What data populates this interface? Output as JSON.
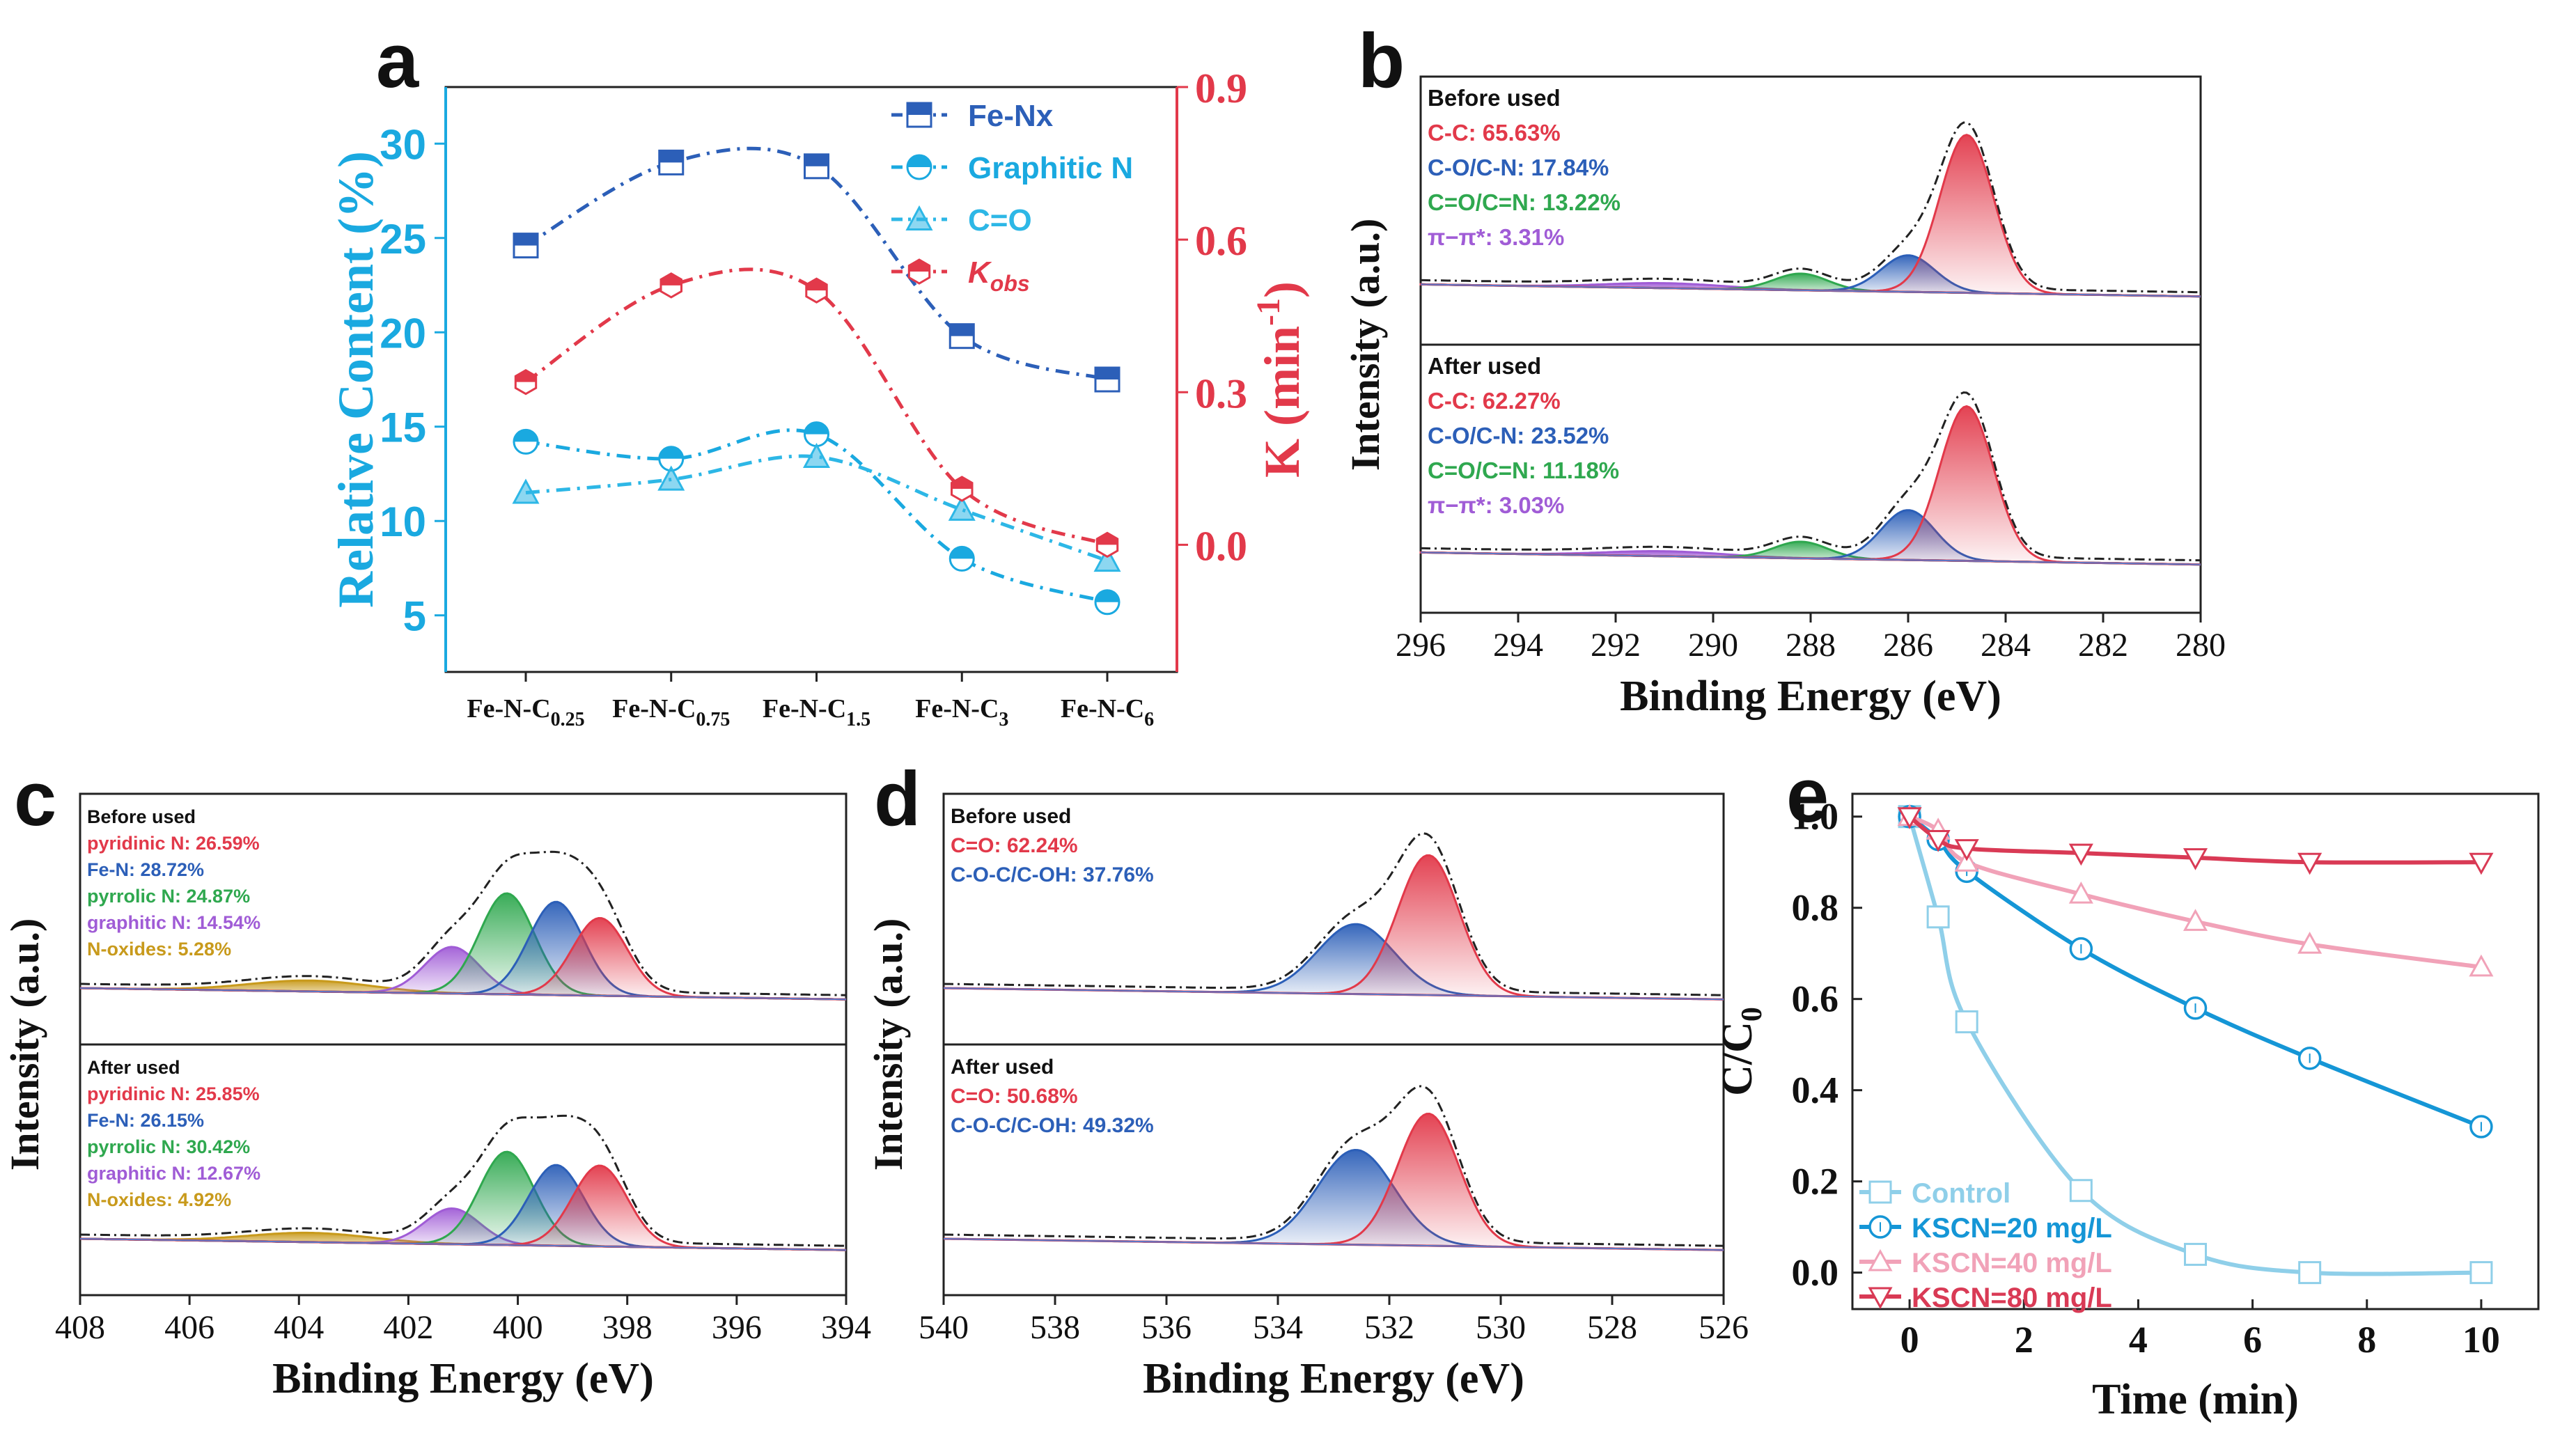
{
  "colors": {
    "blue": "#2c5fb8",
    "cyan": "#1aa9e0",
    "light_cyan": "#2db7e6",
    "red": "#e2394a",
    "green": "#2fa84f",
    "purple": "#a05cd6",
    "gold": "#c89a1c",
    "pink": "#e58aa6",
    "control": "#8fcfe9",
    "k20": "#1596d6",
    "k40": "#f1a2b8",
    "k80": "#d93a55"
  },
  "panel_labels": [
    "a",
    "b",
    "c",
    "d",
    "e"
  ],
  "chart_data": [
    {
      "panel": "a",
      "type": "line",
      "categories": [
        "Fe-N-C0.25",
        "Fe-N-C0.75",
        "Fe-N-C1.5",
        "Fe-N-C3",
        "Fe-N-C6"
      ],
      "category_labels": [
        {
          "base": "Fe-N-C",
          "sub": "0.25"
        },
        {
          "base": "Fe-N-C",
          "sub": "0.75"
        },
        {
          "base": "Fe-N-C",
          "sub": "1.5"
        },
        {
          "base": "Fe-N-C",
          "sub": "3"
        },
        {
          "base": "Fe-N-C",
          "sub": "6"
        }
      ],
      "ylabel_left": "Relative Content (%)",
      "ylabel_right": "K (min-1)",
      "ylabel_right_parts": {
        "base": "K (min",
        "sup": "-1",
        "end": ")"
      },
      "ylim_left": [
        2,
        33
      ],
      "ylim_right": [
        -0.25,
        0.9
      ],
      "yticks_left": [
        5,
        10,
        15,
        20,
        25,
        30
      ],
      "yticks_right": [
        0.0,
        0.3,
        0.6,
        0.9
      ],
      "yticklabels_right": [
        "0.0",
        "0.3",
        "0.6",
        "0.9"
      ],
      "series": [
        {
          "name": "Fe-Nx",
          "axis": "left",
          "marker": "square-half",
          "color": "#2c5fb8",
          "values": [
            24.6,
            29.0,
            28.8,
            19.8,
            17.5
          ]
        },
        {
          "name": "Graphitic N",
          "axis": "left",
          "marker": "circle-half",
          "color": "#1aa9e0",
          "values": [
            14.2,
            13.3,
            14.6,
            8.0,
            5.7
          ]
        },
        {
          "name": "C=O",
          "axis": "left",
          "marker": "triangle-half",
          "color": "#2db7e6",
          "values": [
            11.5,
            12.2,
            13.4,
            10.6,
            7.9
          ]
        },
        {
          "name": "Kobs",
          "label_parts": {
            "base": "K",
            "sub": "obs"
          },
          "axis": "right",
          "marker": "hexagon-half",
          "color": "#e2394a",
          "values": [
            0.32,
            0.51,
            0.5,
            0.11,
            0.0
          ]
        }
      ]
    },
    {
      "panel": "b",
      "type": "area",
      "xlabel": "Binding Energy (eV)",
      "ylabel": "Intensity (a.u.)",
      "xlim": [
        296,
        280
      ],
      "xticks": [
        296,
        294,
        292,
        290,
        288,
        286,
        284,
        282,
        280
      ],
      "subpanels": [
        {
          "title": "Before used",
          "components": [
            {
              "name": "C-C",
              "label": "C-C: 65.63%",
              "percent": 65.63,
              "center": 284.8,
              "height": 0.95,
              "color": "#e2394a"
            },
            {
              "name": "C-O/C-N",
              "label": "C-O/C-N: 17.84%",
              "percent": 17.84,
              "center": 286.0,
              "height": 0.22,
              "color": "#2c5fb8"
            },
            {
              "name": "C=O/C=N",
              "label": "C=O/C=N: 13.22%",
              "percent": 13.22,
              "center": 288.2,
              "height": 0.1,
              "color": "#2fa84f"
            },
            {
              "name": "π−π*",
              "label": "π−π*: 3.31%",
              "percent": 3.31,
              "center": 291.0,
              "height": 0.03,
              "color": "#a05cd6"
            }
          ]
        },
        {
          "title": "After used",
          "components": [
            {
              "name": "C-C",
              "label": "C-C: 62.27%",
              "percent": 62.27,
              "center": 284.8,
              "height": 0.93,
              "color": "#e2394a"
            },
            {
              "name": "C-O/C-N",
              "label": "C-O/C-N: 23.52%",
              "percent": 23.52,
              "center": 286.0,
              "height": 0.3,
              "color": "#2c5fb8"
            },
            {
              "name": "C=O/C=N",
              "label": "C=O/C=N: 11.18%",
              "percent": 11.18,
              "center": 288.2,
              "height": 0.1,
              "color": "#2fa84f"
            },
            {
              "name": "π−π*",
              "label": "π−π*: 3.03%",
              "percent": 3.03,
              "center": 291.0,
              "height": 0.03,
              "color": "#a05cd6"
            }
          ]
        }
      ]
    },
    {
      "panel": "c",
      "type": "area",
      "xlabel": "Binding Energy (eV)",
      "ylabel": "Intensity (a.u.)",
      "xlim": [
        408,
        394
      ],
      "xticks": [
        408,
        406,
        404,
        402,
        400,
        398,
        396,
        394
      ],
      "subpanels": [
        {
          "title": "Before used",
          "components": [
            {
              "name": "pyridinic N",
              "label": "pyridinic N: 26.59%",
              "percent": 26.59,
              "center": 398.5,
              "height": 0.5,
              "color": "#e2394a"
            },
            {
              "name": "Fe-N",
              "label": "Fe-N: 28.72%",
              "percent": 28.72,
              "center": 399.3,
              "height": 0.6,
              "color": "#2c5fb8"
            },
            {
              "name": "pyrrolic N",
              "label": "pyrrolic N: 24.87%",
              "percent": 24.87,
              "center": 400.2,
              "height": 0.65,
              "color": "#2fa84f"
            },
            {
              "name": "graphitic N",
              "label": "graphitic N: 14.54%",
              "percent": 14.54,
              "center": 401.2,
              "height": 0.3,
              "color": "#a05cd6"
            },
            {
              "name": "N-oxides",
              "label": "N-oxides: 5.28%",
              "percent": 5.28,
              "center": 403.8,
              "height": 0.07,
              "color": "#c89a1c"
            }
          ]
        },
        {
          "title": "After used",
          "components": [
            {
              "name": "pyridinic N",
              "label": "pyridinic N: 25.85%",
              "percent": 25.85,
              "center": 398.5,
              "height": 0.52,
              "color": "#e2394a"
            },
            {
              "name": "Fe-N",
              "label": "Fe-N: 26.15%",
              "percent": 26.15,
              "center": 399.3,
              "height": 0.52,
              "color": "#2c5fb8"
            },
            {
              "name": "pyrrolic N",
              "label": "pyrrolic N: 30.42%",
              "percent": 30.42,
              "center": 400.2,
              "height": 0.6,
              "color": "#2fa84f"
            },
            {
              "name": "graphitic N",
              "label": "graphitic N: 12.67%",
              "percent": 12.67,
              "center": 401.2,
              "height": 0.23,
              "color": "#a05cd6"
            },
            {
              "name": "N-oxides",
              "label": "N-oxides: 4.92%",
              "percent": 4.92,
              "center": 403.8,
              "height": 0.06,
              "color": "#c89a1c"
            }
          ]
        }
      ]
    },
    {
      "panel": "d",
      "type": "area",
      "xlabel": "Binding Energy (eV)",
      "ylabel": "Intensity (a.u.)",
      "xlim": [
        540,
        526
      ],
      "xticks": [
        540,
        538,
        536,
        534,
        532,
        530,
        528,
        526
      ],
      "subpanels": [
        {
          "title": "Before used",
          "components": [
            {
              "name": "C=O",
              "label": "C=O: 62.24%",
              "percent": 62.24,
              "center": 531.3,
              "height": 0.9,
              "color": "#e2394a"
            },
            {
              "name": "C-O-C/C-OH",
              "label": "C-O-C/C-OH: 37.76%",
              "percent": 37.76,
              "center": 532.6,
              "height": 0.45,
              "color": "#2c5fb8"
            }
          ]
        },
        {
          "title": "After used",
          "components": [
            {
              "name": "C=O",
              "label": "C=O: 50.68%",
              "percent": 50.68,
              "center": 531.3,
              "height": 0.85,
              "color": "#e2394a"
            },
            {
              "name": "C-O-C/C-OH",
              "label": "C-O-C/C-OH: 49.32%",
              "percent": 49.32,
              "center": 532.6,
              "height": 0.61,
              "color": "#2c5fb8"
            }
          ]
        }
      ]
    },
    {
      "panel": "e",
      "type": "line",
      "xlabel": "Time (min)",
      "ylabel": "C/C0",
      "ylabel_parts": {
        "base": "C/C",
        "sub": "0"
      },
      "xlim": [
        -1,
        11
      ],
      "ylim": [
        -0.08,
        1.05
      ],
      "xticks": [
        0,
        2,
        4,
        6,
        8,
        10
      ],
      "yticks": [
        0.0,
        0.2,
        0.4,
        0.6,
        0.8,
        1.0
      ],
      "yticklabels": [
        "0.0",
        "0.2",
        "0.4",
        "0.6",
        "0.8",
        "1.0"
      ],
      "x": [
        0,
        0.5,
        1,
        3,
        5,
        7,
        10
      ],
      "series": [
        {
          "name": "Control",
          "marker": "square",
          "color": "#8fcfe9",
          "values": [
            1.0,
            0.78,
            0.55,
            0.18,
            0.04,
            0.0,
            0.0
          ]
        },
        {
          "name": "KSCN=20 mg/L",
          "marker": "circle",
          "color": "#1596d6",
          "values": [
            1.0,
            0.95,
            0.88,
            0.71,
            0.58,
            0.47,
            0.32
          ]
        },
        {
          "name": "KSCN=40 mg/L",
          "marker": "triangle",
          "color": "#f1a2b8",
          "values": [
            1.0,
            0.97,
            0.9,
            0.83,
            0.77,
            0.72,
            0.67
          ]
        },
        {
          "name": "KSCN=80 mg/L",
          "marker": "triangle-down",
          "color": "#d93a55",
          "values": [
            1.0,
            0.95,
            0.93,
            0.92,
            0.91,
            0.9,
            0.9
          ]
        }
      ]
    }
  ]
}
